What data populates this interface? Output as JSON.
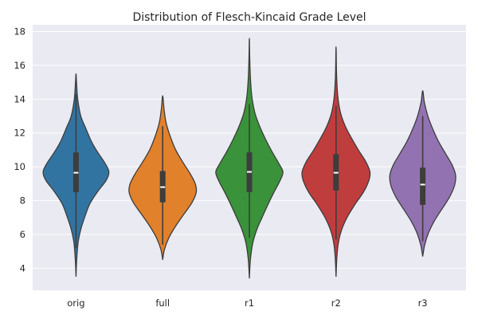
{
  "chart_data": {
    "type": "violin",
    "title": "Distribution of Flesch-Kincaid Grade Level",
    "xlabel": "",
    "ylabel": "",
    "categories": [
      "orig",
      "full",
      "r1",
      "r2",
      "r3"
    ],
    "y_ticks": [
      "4",
      "6",
      "8",
      "10",
      "12",
      "14",
      "16",
      "18"
    ],
    "ylim": [
      2.7,
      18.4
    ],
    "grid": true,
    "background_color": "#eaeaf2",
    "series": [
      {
        "category": "orig",
        "color": "#3274a1",
        "min": 3.5,
        "max": 15.5,
        "q1": 8.5,
        "median": 9.65,
        "q3": 10.85,
        "whisker_low": 5.2,
        "whisker_high": 14.3,
        "profile": [
          [
            3.5,
            0
          ],
          [
            4.5,
            0.02
          ],
          [
            5.5,
            0.06
          ],
          [
            6.3,
            0.14
          ],
          [
            7.0,
            0.25
          ],
          [
            7.8,
            0.4
          ],
          [
            8.5,
            0.62
          ],
          [
            9.2,
            0.88
          ],
          [
            9.7,
            0.96
          ],
          [
            10.2,
            0.85
          ],
          [
            10.9,
            0.62
          ],
          [
            11.5,
            0.45
          ],
          [
            12.3,
            0.28
          ],
          [
            13.0,
            0.14
          ],
          [
            14.0,
            0.05
          ],
          [
            15.0,
            0.015
          ],
          [
            15.5,
            0
          ]
        ]
      },
      {
        "category": "full",
        "color": "#e1812c",
        "min": 4.5,
        "max": 14.2,
        "q1": 7.9,
        "median": 8.8,
        "q3": 9.75,
        "whisker_low": 5.4,
        "whisker_high": 12.4,
        "profile": [
          [
            4.5,
            0
          ],
          [
            5.1,
            0.05
          ],
          [
            5.8,
            0.18
          ],
          [
            6.5,
            0.38
          ],
          [
            7.2,
            0.62
          ],
          [
            7.9,
            0.86
          ],
          [
            8.5,
            0.98
          ],
          [
            9.0,
            0.95
          ],
          [
            9.6,
            0.8
          ],
          [
            10.3,
            0.58
          ],
          [
            11.0,
            0.38
          ],
          [
            11.8,
            0.22
          ],
          [
            12.6,
            0.1
          ],
          [
            13.4,
            0.04
          ],
          [
            14.2,
            0
          ]
        ]
      },
      {
        "category": "r1",
        "color": "#3a923a",
        "min": 3.4,
        "max": 17.6,
        "q1": 8.5,
        "median": 9.7,
        "q3": 10.85,
        "whisker_low": 5.8,
        "whisker_high": 13.7,
        "profile": [
          [
            3.4,
            0
          ],
          [
            4.5,
            0.03
          ],
          [
            5.5,
            0.1
          ],
          [
            6.3,
            0.22
          ],
          [
            7.0,
            0.37
          ],
          [
            7.8,
            0.55
          ],
          [
            8.5,
            0.72
          ],
          [
            9.2,
            0.9
          ],
          [
            9.7,
            0.98
          ],
          [
            10.2,
            0.86
          ],
          [
            10.9,
            0.66
          ],
          [
            11.6,
            0.48
          ],
          [
            12.4,
            0.3
          ],
          [
            13.2,
            0.16
          ],
          [
            14.2,
            0.07
          ],
          [
            15.3,
            0.03
          ],
          [
            16.5,
            0.01
          ],
          [
            17.6,
            0
          ]
        ]
      },
      {
        "category": "r2",
        "color": "#c03d3e",
        "min": 3.5,
        "max": 17.1,
        "q1": 8.6,
        "median": 9.65,
        "q3": 10.75,
        "whisker_low": 5.7,
        "whisker_high": 13.6,
        "profile": [
          [
            3.5,
            0
          ],
          [
            4.5,
            0.02
          ],
          [
            5.4,
            0.06
          ],
          [
            6.2,
            0.15
          ],
          [
            7.0,
            0.32
          ],
          [
            7.8,
            0.56
          ],
          [
            8.5,
            0.8
          ],
          [
            9.2,
            0.96
          ],
          [
            9.7,
            0.99
          ],
          [
            10.3,
            0.87
          ],
          [
            11.0,
            0.65
          ],
          [
            11.7,
            0.45
          ],
          [
            12.4,
            0.27
          ],
          [
            13.2,
            0.13
          ],
          [
            14.2,
            0.05
          ],
          [
            15.5,
            0.015
          ],
          [
            17.1,
            0
          ]
        ]
      },
      {
        "category": "r3",
        "color": "#9372b2",
        "min": 4.7,
        "max": 14.5,
        "q1": 7.75,
        "median": 8.95,
        "q3": 9.95,
        "whisker_low": 5.6,
        "whisker_high": 13.0,
        "profile": [
          [
            4.7,
            0
          ],
          [
            5.4,
            0.06
          ],
          [
            6.1,
            0.17
          ],
          [
            6.8,
            0.34
          ],
          [
            7.5,
            0.56
          ],
          [
            8.2,
            0.78
          ],
          [
            8.9,
            0.93
          ],
          [
            9.5,
            0.96
          ],
          [
            10.1,
            0.86
          ],
          [
            10.8,
            0.66
          ],
          [
            11.5,
            0.46
          ],
          [
            12.3,
            0.28
          ],
          [
            13.0,
            0.15
          ],
          [
            13.8,
            0.05
          ],
          [
            14.5,
            0
          ]
        ]
      }
    ]
  }
}
